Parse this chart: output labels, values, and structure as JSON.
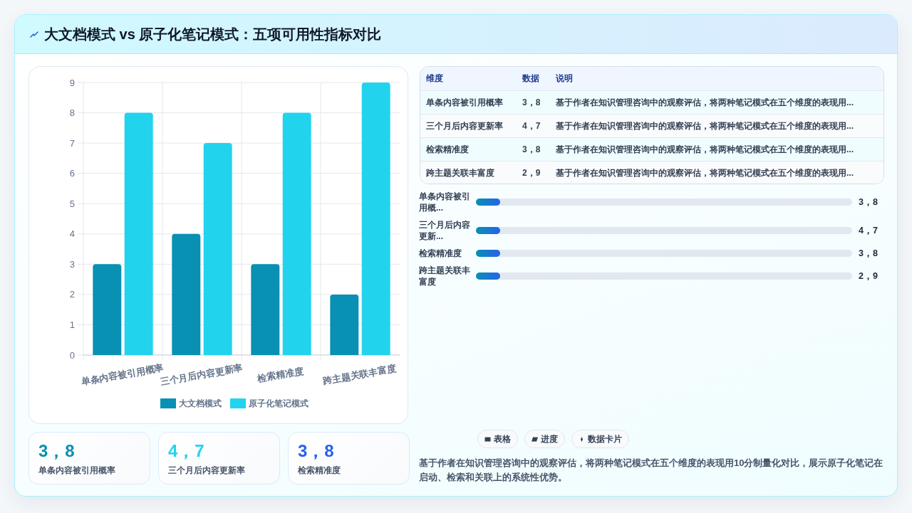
{
  "chart_data": [
    {
      "type": "bar",
      "title": "大文档模式 vs 原子化笔记模式：五项可用性指标对比",
      "categories": [
        "单条内容被引用概率",
        "三个月后内容更新率",
        "检索精准度",
        "跨主题关联丰富度"
      ],
      "series": [
        {
          "name": "大文档模式",
          "color": "#0891b2",
          "values": [
            3,
            4,
            3,
            2
          ]
        },
        {
          "name": "原子化笔记模式",
          "color": "#22d3ee",
          "values": [
            8,
            7,
            8,
            9
          ]
        }
      ],
      "ylim": [
        0,
        9
      ],
      "yticks": [
        0,
        1,
        2,
        3,
        4,
        5,
        6,
        7,
        8,
        9
      ],
      "grid": true,
      "legend": "bottom"
    },
    {
      "type": "other",
      "annotations": [
        "维度",
        "数据",
        "说明",
        "单条内容被引用概率",
        "3，8",
        "基于作者在知识管理咨询中的观察评估，将两种笔记模式在五个维度的表现用...",
        "三个月后内容更新率",
        "4，7",
        "基于作者在知识管理咨询中的观察评估，将两种笔记模式在五个维度的表现用...",
        "检索精准度",
        "3，8",
        "基于作者在知识管理咨询中的观察评估，将两种笔记模式在五个维度的表现用...",
        "跨主题关联丰富度",
        "2，9",
        "基于作者在知识管理咨询中的观察评估，将两种笔记模式在五个维度的表现用..."
      ]
    },
    {
      "type": "other",
      "annotations": [
        "单条内容被引用概...",
        "3，8",
        "三个月后内容更新...",
        "4，7",
        "检索精准度",
        "3，8",
        "跨主题关联丰富度",
        "2，9"
      ]
    },
    {
      "type": "other",
      "annotations": [
        "3，8",
        "单条内容被引用概率",
        "4，7",
        "三个月后内容更新率",
        "3，8",
        "检索精准度"
      ],
      "colors": [
        "#0891b2",
        "#22d3ee",
        "#2563eb"
      ]
    },
    {
      "type": "other",
      "annotations": [
        "表格",
        "进度",
        "数据卡片",
        "基于作者在知识管理咨询中的观察评估，将两种笔记模式在五个维度的表现用10分制量化对比，展示原子化笔记在启动、检索和关联上的系统性优势。"
      ]
    }
  ]
}
